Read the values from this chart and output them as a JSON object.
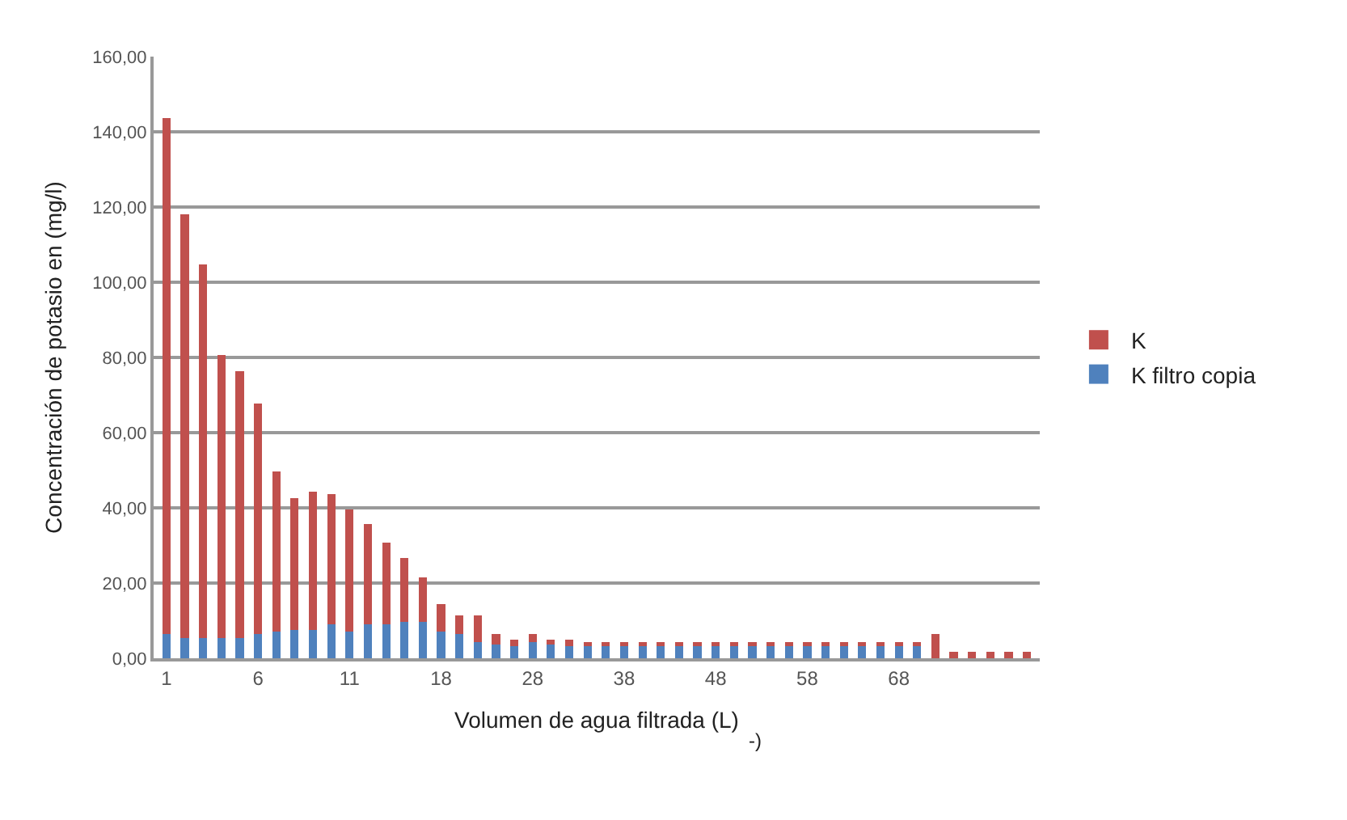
{
  "chart_data": {
    "type": "bar",
    "stacked": true,
    "xlabel": "Volumen de agua filtrada (L)",
    "ylabel": "Concentración de potasio en (mg/l)",
    "annotations": [
      "-)"
    ],
    "categories": [
      "1",
      null,
      null,
      null,
      null,
      "6",
      null,
      null,
      null,
      null,
      "11",
      null,
      null,
      null,
      null,
      "18",
      null,
      null,
      null,
      null,
      "28",
      null,
      null,
      null,
      null,
      "38",
      null,
      null,
      null,
      null,
      "48",
      null,
      null,
      null,
      null,
      "58",
      null,
      null,
      null,
      null,
      "68",
      null,
      null,
      null,
      null,
      null,
      null,
      null
    ],
    "series": [
      {
        "name": "K filtro copia",
        "color": "#4f81bd",
        "values": [
          6.5,
          5.3,
          5.3,
          5.3,
          5.3,
          6.5,
          7.2,
          7.6,
          7.6,
          9,
          7.2,
          9,
          9,
          9.7,
          9.7,
          7.2,
          6.5,
          4.3,
          3.6,
          3.3,
          4.3,
          3.6,
          3.3,
          3.2,
          3.2,
          3.2,
          3.2,
          3.2,
          3.2,
          3.2,
          3.2,
          3.2,
          3.2,
          3.2,
          3.2,
          3.2,
          3.2,
          3.2,
          3.2,
          3.2,
          3.2,
          3.2,
          0,
          0,
          0,
          0,
          0,
          0
        ]
      },
      {
        "name": "K",
        "color": "#c0504d",
        "values": [
          137.2,
          112.7,
          99.5,
          75.4,
          71.1,
          61.2,
          42.5,
          34.9,
          36.6,
          34.7,
          32.4,
          26.7,
          21.7,
          17,
          11.9,
          7.2,
          5,
          7.2,
          2.9,
          1.7,
          2.2,
          1.4,
          1.7,
          1.1,
          1.1,
          1.1,
          1.1,
          1.1,
          1.1,
          1.1,
          1.1,
          1.1,
          1.1,
          1.1,
          1.1,
          1.1,
          1.1,
          1.1,
          1.1,
          1.1,
          1.1,
          1.1,
          6.5,
          1.7,
          1.7,
          1.7,
          1.7,
          1.7
        ]
      }
    ],
    "ylim": [
      0,
      160
    ],
    "yticks": [
      {
        "value": 0,
        "label": "0,00"
      },
      {
        "value": 20,
        "label": "20,00"
      },
      {
        "value": 40,
        "label": "40,00"
      },
      {
        "value": 60,
        "label": "60,00"
      },
      {
        "value": 80,
        "label": "80,00"
      },
      {
        "value": 100,
        "label": "100,00"
      },
      {
        "value": 120,
        "label": "120,00"
      },
      {
        "value": 140,
        "label": "140,00"
      },
      {
        "value": 160,
        "label": "160,00"
      }
    ],
    "grid": "y",
    "legend": "right"
  }
}
